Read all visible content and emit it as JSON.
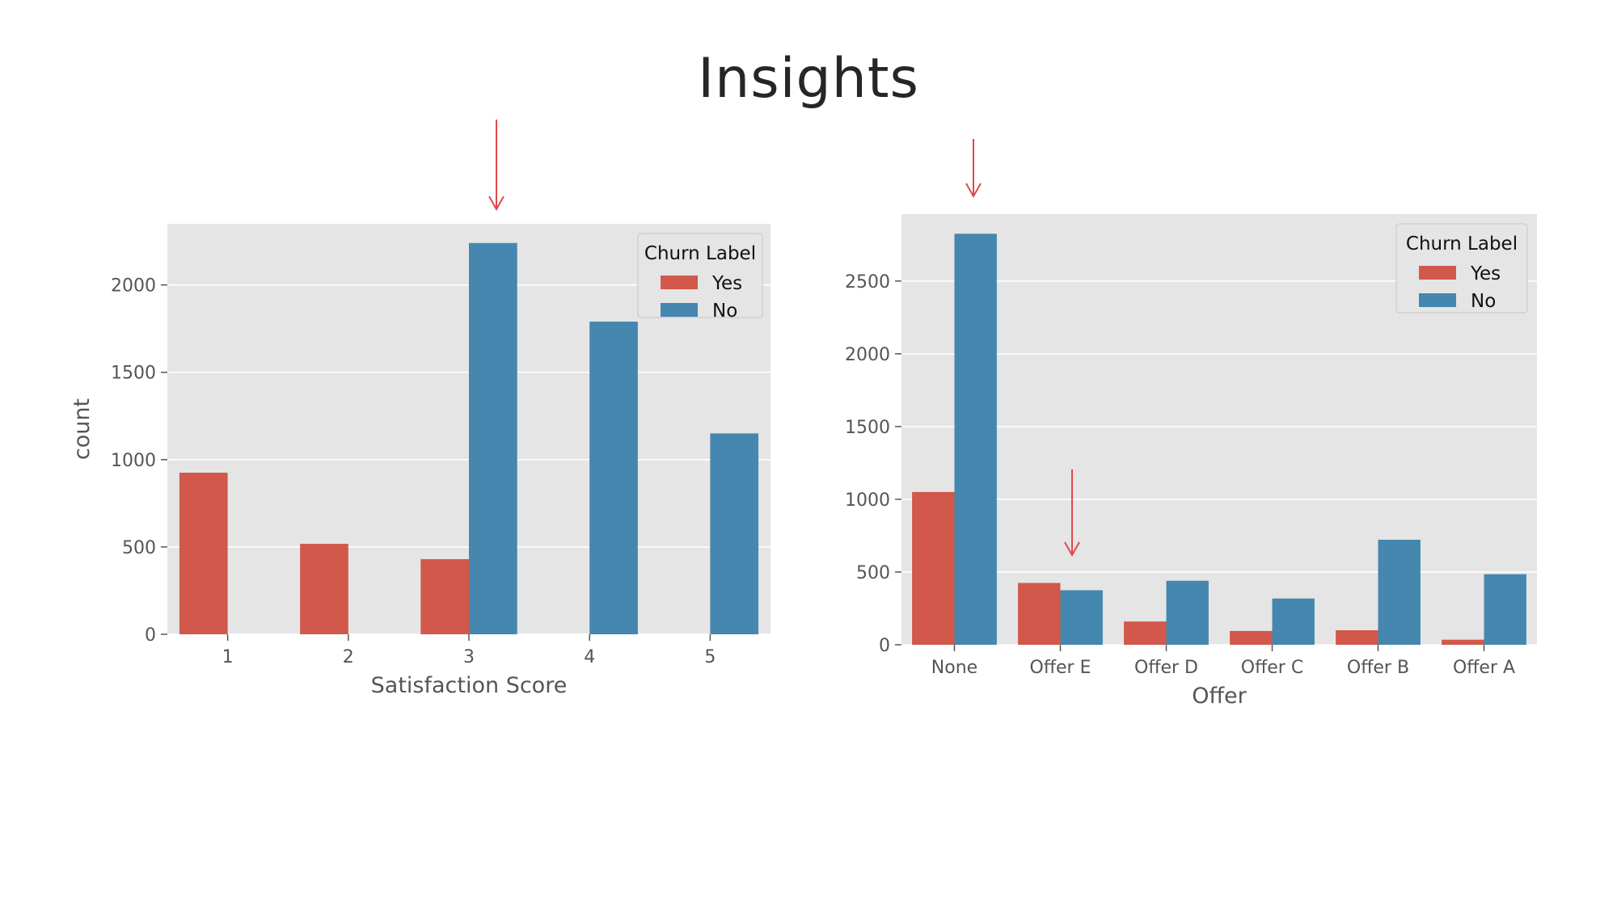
{
  "slide": {
    "title": "Insights"
  },
  "colors": {
    "yes": "#d1584a",
    "no": "#4587ae",
    "panel": "#e5e5e5",
    "grid": "#ffffff",
    "arrow": "#e0474c"
  },
  "chart_data": [
    {
      "type": "bar",
      "categories": [
        "1",
        "2",
        "3",
        "4",
        "5"
      ],
      "series": [
        {
          "name": "Yes",
          "values": [
            925,
            518,
            430,
            0,
            0
          ]
        },
        {
          "name": "No",
          "values": [
            0,
            0,
            2240,
            1790,
            1150
          ]
        }
      ],
      "xlabel": "Satisfaction Score",
      "ylabel": "count",
      "yticks": [
        0,
        500,
        1000,
        1500,
        2000
      ],
      "ylim": [
        0,
        2350
      ],
      "legend": {
        "title": "Churn Label",
        "position": "top-right"
      },
      "grid": true
    },
    {
      "type": "bar",
      "categories": [
        "None",
        "Offer E",
        "Offer D",
        "Offer C",
        "Offer B",
        "Offer A"
      ],
      "series": [
        {
          "name": "Yes",
          "values": [
            1050,
            425,
            160,
            95,
            100,
            35
          ]
        },
        {
          "name": "No",
          "values": [
            2825,
            375,
            440,
            318,
            722,
            485
          ]
        }
      ],
      "xlabel": "Offer",
      "ylabel": "",
      "yticks": [
        0,
        500,
        1000,
        1500,
        2000,
        2500
      ],
      "ylim": [
        0,
        2960
      ],
      "legend": {
        "title": "Churn Label",
        "position": "top-right"
      },
      "grid": true
    }
  ]
}
